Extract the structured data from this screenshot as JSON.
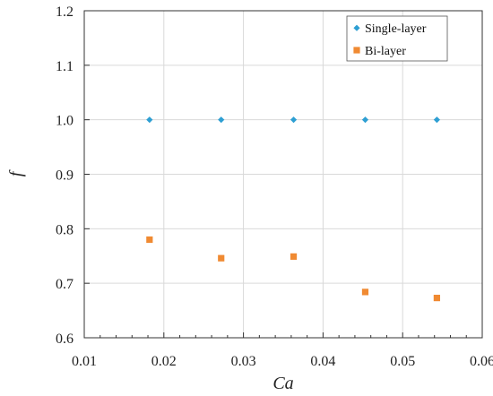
{
  "chart_data": {
    "type": "scatter",
    "xlabel": "Ca",
    "ylabel": "f",
    "xlim": [
      0.01,
      0.06
    ],
    "ylim": [
      0.6,
      1.2
    ],
    "x_ticks": [
      "0.01",
      "0.02",
      "0.03",
      "0.04",
      "0.05",
      "0.06"
    ],
    "y_ticks": [
      "0.6",
      "0.7",
      "0.8",
      "0.9",
      "1.0",
      "1.1",
      "1.2"
    ],
    "grid": true,
    "legend_position": "top-right",
    "series": [
      {
        "name": "Single-layer",
        "marker": "diamond",
        "color": "#2e9fd3",
        "x": [
          0.0182,
          0.0272,
          0.0363,
          0.0453,
          0.0543
        ],
        "y": [
          1.0,
          1.0,
          1.0,
          1.0,
          1.0
        ]
      },
      {
        "name": "Bi-layer",
        "marker": "square",
        "color": "#f08a32",
        "x": [
          0.0182,
          0.0272,
          0.0363,
          0.0453,
          0.0543
        ],
        "y": [
          0.78,
          0.746,
          0.749,
          0.684,
          0.673
        ]
      }
    ]
  }
}
